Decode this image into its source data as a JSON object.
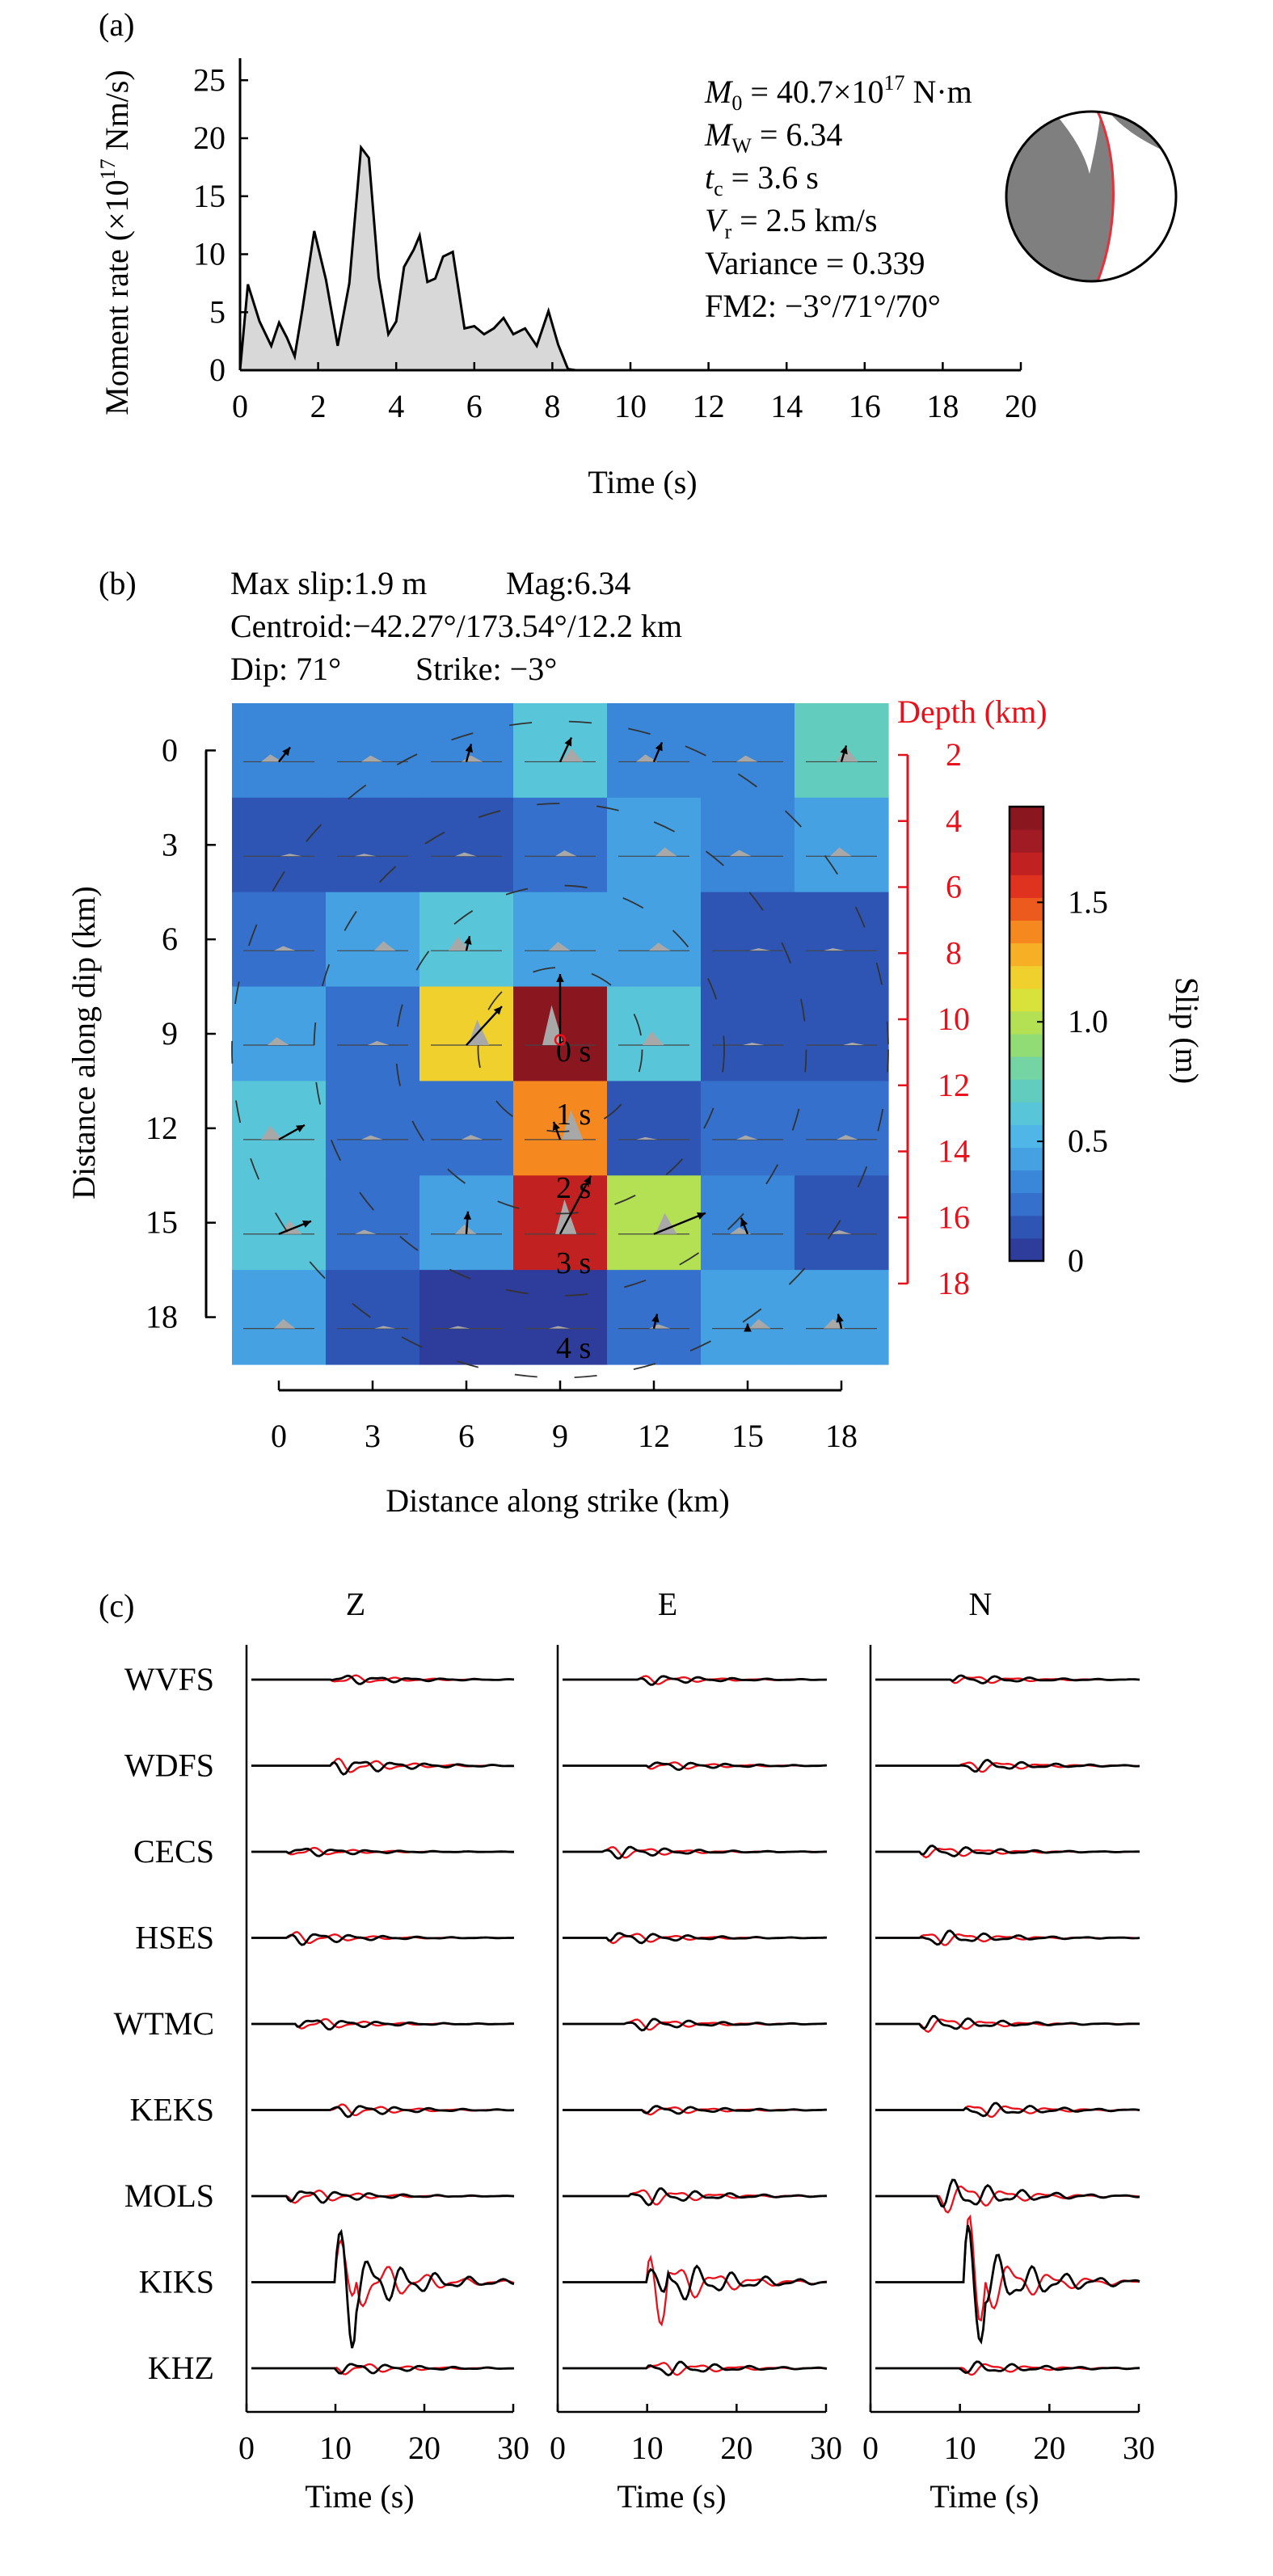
{
  "figure": {
    "panel_labels": {
      "a": "(a)",
      "b": "(b)",
      "c": "(c)"
    }
  },
  "chart_data": [
    {
      "panel": "a",
      "type": "area",
      "xlabel": "Time (s)",
      "ylabel_prefix": "Moment rate (×10",
      "ylabel_sup": "17",
      "ylabel_suffix": " Nm/s)",
      "xlim": [
        0,
        20
      ],
      "ylim": [
        0,
        27
      ],
      "xticks": [
        0,
        2,
        4,
        6,
        8,
        10,
        12,
        14,
        16,
        18,
        20
      ],
      "yticks": [
        0,
        5,
        10,
        15,
        20,
        25
      ],
      "colors": {
        "fill": "#d8d8d8",
        "line": "#000000"
      },
      "x": [
        0,
        0.2,
        0.5,
        0.8,
        1.0,
        1.2,
        1.4,
        1.6,
        1.9,
        2.2,
        2.5,
        2.8,
        3.1,
        3.3,
        3.55,
        3.8,
        4.0,
        4.2,
        4.45,
        4.6,
        4.8,
        5.0,
        5.2,
        5.45,
        5.75,
        6.0,
        6.25,
        6.5,
        6.75,
        7.0,
        7.3,
        7.6,
        7.9,
        8.15,
        8.4,
        8.6,
        20
      ],
      "y": [
        0,
        7.4,
        4.2,
        2.1,
        4.1,
        2.8,
        1.2,
        5.3,
        12.0,
        7.8,
        2.1,
        7.5,
        19.2,
        18.3,
        8.0,
        3.1,
        4.2,
        8.9,
        10.4,
        11.6,
        7.6,
        7.9,
        9.8,
        10.2,
        3.6,
        3.8,
        3.1,
        3.6,
        4.5,
        3.1,
        3.6,
        2.1,
        5.1,
        2.2,
        0.1,
        0,
        0
      ],
      "annotations": [
        {
          "sym": "M",
          "sub": "0",
          "rest": " = 40.7×10",
          "sup": "17",
          "tail": " N·m"
        },
        {
          "sym": "M",
          "sub": "W",
          "rest": " = 6.34",
          "sup": "",
          "tail": ""
        },
        {
          "sym": "t",
          "sub": "c",
          "rest": " = 3.6 s",
          "sup": "",
          "tail": ""
        },
        {
          "sym": "V",
          "sub": "r",
          "rest": " = 2.5 km/s",
          "sup": "",
          "tail": ""
        },
        {
          "sym": "",
          "sub": "",
          "rest": "Variance = 0.339",
          "sup": "",
          "tail": ""
        },
        {
          "sym": "",
          "sub": "",
          "rest": "FM2: −3°/71°/70°",
          "sup": "",
          "tail": ""
        }
      ],
      "beachball": {
        "strike": -3,
        "dip": 71,
        "rake": 70,
        "fill": "#7f7f7f",
        "plane_color": "#e8303a"
      }
    },
    {
      "panel": "b",
      "type": "heatmap",
      "header": [
        "Max slip:1.9 m",
        "Mag:6.34",
        "Centroid:−42.27°/173.54°/12.2 km",
        "Dip: 71°",
        "Strike: −3°"
      ],
      "xlabel": "Distance along strike (km)",
      "ylabel": "Distance along dip (km)",
      "depth_label": "Depth (km)",
      "colorbar_label": "Slip (m)",
      "xticks": [
        0,
        3,
        6,
        9,
        12,
        15,
        18
      ],
      "yticks": [
        0,
        3,
        6,
        9,
        12,
        15,
        18
      ],
      "depth_ticks": [
        2,
        4,
        6,
        8,
        10,
        12,
        14,
        16,
        18
      ],
      "colorbar_ticks": [
        0,
        0.5,
        1.0,
        1.5
      ],
      "colorbar_tick_labels": [
        "0",
        "0.5",
        "1.0",
        "1.5"
      ],
      "clim": [
        0,
        1.9
      ],
      "colors": {
        "depth": "#e8101a",
        "contour": "#333333",
        "arrow": "#000000",
        "stf": "#a8a8a8"
      },
      "colormap": [
        "#2e3d9c",
        "#2f55b4",
        "#3470cc",
        "#3a86d8",
        "#45a1e2",
        "#50b6e8",
        "#58c6d8",
        "#62ccbe",
        "#74d4a4",
        "#92dc76",
        "#b4e054",
        "#d8e23a",
        "#efd02c",
        "#f7b025",
        "#f5881f",
        "#ed5a1d",
        "#df331f",
        "#c22122",
        "#a01b24",
        "#8a1620"
      ],
      "slip": [
        [
          0.35,
          0.3,
          0.3,
          0.65,
          0.35,
          0.3,
          0.72
        ],
        [
          0.12,
          0.12,
          0.18,
          0.28,
          0.42,
          0.3,
          0.42
        ],
        [
          0.22,
          0.45,
          0.65,
          0.42,
          0.38,
          0.1,
          0.1
        ],
        [
          0.38,
          0.2,
          1.2,
          1.9,
          0.65,
          0.1,
          0.12
        ],
        [
          0.65,
          0.2,
          0.22,
          1.4,
          0.1,
          0.2,
          0.22
        ],
        [
          0.65,
          0.2,
          0.45,
          1.65,
          1.0,
          0.32,
          0.18
        ],
        [
          0.45,
          0.12,
          0.05,
          0.05,
          0.2,
          0.45,
          0.45
        ]
      ],
      "rupture_front_labels": [
        "0 s",
        "1 s",
        "2 s",
        "3 s",
        "4 s"
      ],
      "rupture_front_km": [
        0,
        2.5,
        5.0,
        7.5,
        10.0
      ],
      "hypocenter_km": [
        9,
        9.5
      ]
    },
    {
      "panel": "c",
      "type": "line",
      "components": [
        "Z",
        "E",
        "N"
      ],
      "stations": [
        "WVFS",
        "WDFS",
        "CECS",
        "HSES",
        "WTMC",
        "KEKS",
        "MOLS",
        "KIKS",
        "KHZ"
      ],
      "xlabel": "Time (s)",
      "xlim": [
        0,
        30
      ],
      "xticks": [
        0,
        10,
        20,
        30
      ],
      "series": [
        {
          "name": "observed",
          "color": "#000000"
        },
        {
          "name": "synthetic",
          "color": "#e8101a"
        }
      ],
      "wave_onset_s": [
        [
          9,
          8.5,
          8.5
        ],
        [
          9,
          9.5,
          9.5
        ],
        [
          4,
          4.5,
          5
        ],
        [
          4,
          5,
          5
        ],
        [
          5,
          7,
          5
        ],
        [
          9,
          9,
          10
        ],
        [
          4,
          7.5,
          7
        ],
        [
          9.5,
          9.5,
          10
        ],
        [
          9.5,
          9.5,
          9.5
        ]
      ],
      "wave_amplitude": [
        [
          0.15,
          0.15,
          0.15
        ],
        [
          0.25,
          0.15,
          0.2
        ],
        [
          0.15,
          0.2,
          0.2
        ],
        [
          0.2,
          0.2,
          0.25
        ],
        [
          0.2,
          0.2,
          0.25
        ],
        [
          0.2,
          0.15,
          0.25
        ],
        [
          0.25,
          0.3,
          0.5
        ],
        [
          1.0,
          0.8,
          1.0
        ],
        [
          0.2,
          0.25,
          0.2
        ]
      ]
    }
  ]
}
